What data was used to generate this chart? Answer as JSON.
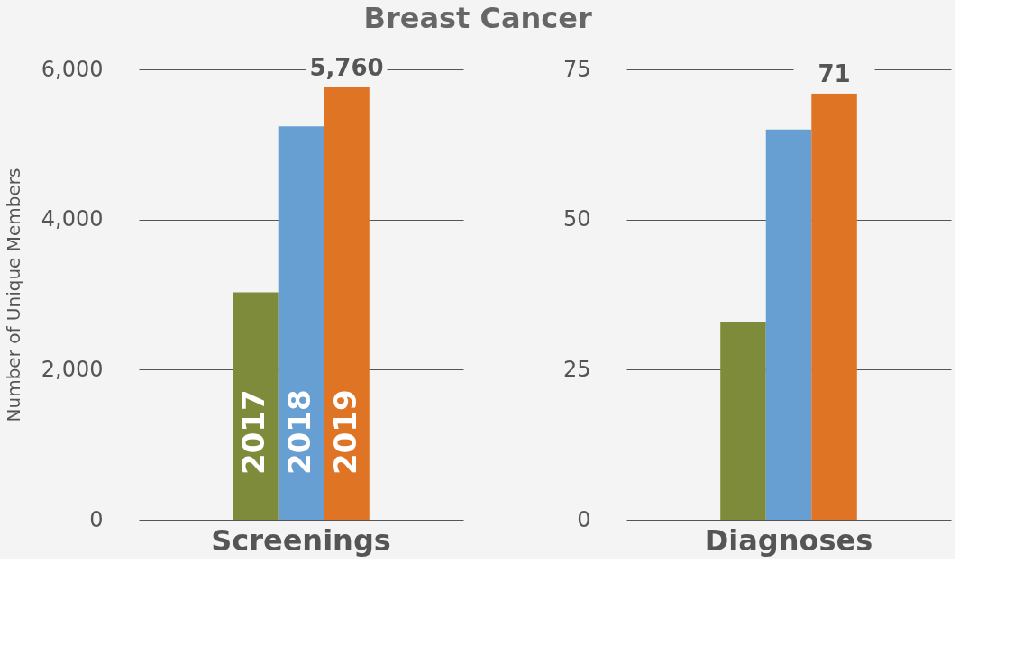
{
  "chart_data": [
    {
      "type": "bar",
      "title": "Breast Cancer",
      "ylabel": "Number of Unique Members",
      "categories": [
        "Screenings"
      ],
      "series": [
        {
          "name": "2017",
          "color": "#7d8b3a",
          "values": [
            3030
          ]
        },
        {
          "name": "2018",
          "color": "#689fd3",
          "values": [
            5240
          ]
        },
        {
          "name": "2019",
          "color": "#e07425",
          "values": [
            5760
          ],
          "value_labels": [
            "5,760"
          ]
        }
      ],
      "ylim": [
        0,
        6000
      ],
      "yticks": [
        0,
        {
          "value": 2000,
          "label": "2,000"
        },
        {
          "value": 4000,
          "label": "4,000"
        },
        {
          "value": 6000,
          "label": "6,000"
        }
      ],
      "grid": "y"
    },
    {
      "type": "bar",
      "categories": [
        "Diagnoses"
      ],
      "series": [
        {
          "color": "#7d8b3a",
          "values": [
            33
          ]
        },
        {
          "color": "#689fd3",
          "values": [
            65
          ]
        },
        {
          "color": "#e07425",
          "values": [
            71
          ],
          "value_labels": [
            "71"
          ]
        }
      ],
      "ylim": [
        0,
        75
      ],
      "yticks": [
        0,
        25,
        50,
        75
      ],
      "grid": "y"
    }
  ]
}
